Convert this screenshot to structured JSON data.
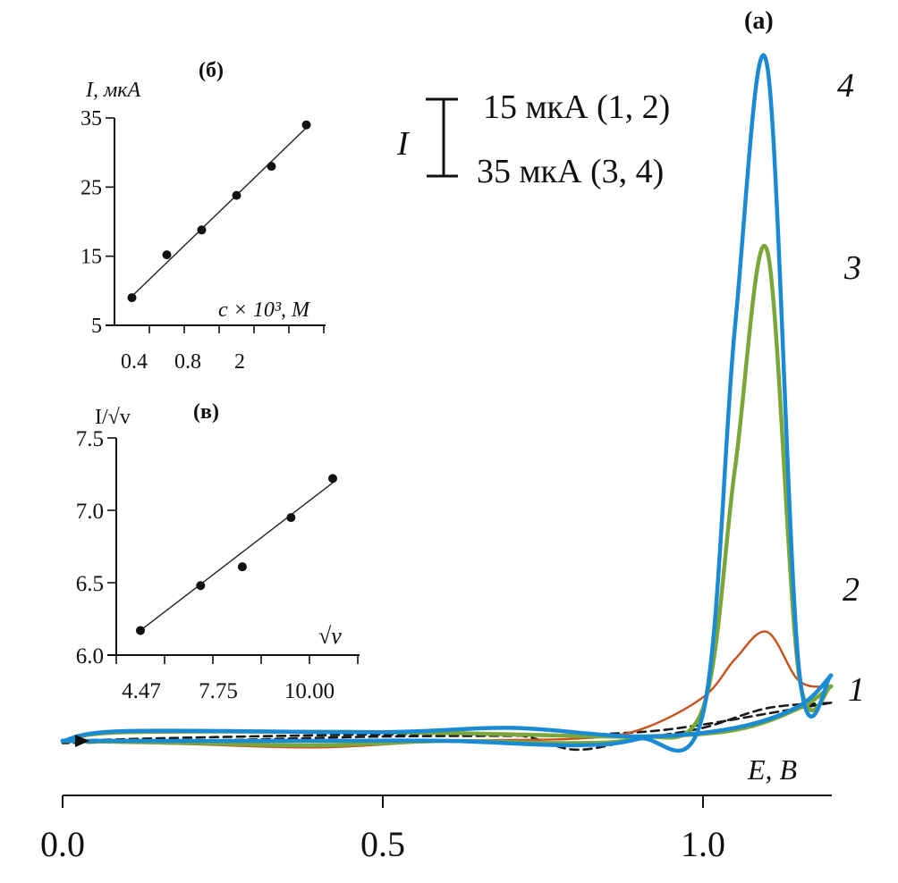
{
  "colors": {
    "curve1": "#1a1a1a",
    "curve2": "#c8501e",
    "curve3": "#7aa63a",
    "curve4": "#1a8ad4",
    "axis": "#111111"
  },
  "chart_data": [
    {
      "id": "a",
      "type": "line",
      "panel_label": "(a)",
      "xlabel": "E, В",
      "ylabel": "I",
      "xlim": [
        0.0,
        1.2
      ],
      "xticks": [
        0.0,
        0.5,
        1.0
      ],
      "xtick_labels": [
        "0.0",
        "0.5",
        "1.0"
      ],
      "scale_bar": {
        "symbol": "I",
        "line1": "15 мкА (1, 2)",
        "line2": "35 мкА (3, 4)"
      },
      "series": [
        {
          "name": "1",
          "label": "1",
          "style": "dashed",
          "forward": [
            [
              0.0,
              0.0
            ],
            [
              0.2,
              0.3
            ],
            [
              0.5,
              0.6
            ],
            [
              0.7,
              0.6
            ],
            [
              0.8,
              -0.8
            ],
            [
              0.9,
              0.2
            ],
            [
              1.0,
              1.2
            ],
            [
              1.1,
              3.0
            ],
            [
              1.2,
              3.5
            ]
          ],
          "reverse": [
            [
              1.2,
              3.5
            ],
            [
              1.1,
              2.5
            ],
            [
              1.0,
              1.5
            ],
            [
              0.9,
              0.8
            ],
            [
              0.75,
              0.5
            ],
            [
              0.5,
              0.4
            ],
            [
              0.2,
              0.0
            ],
            [
              0.0,
              -0.2
            ]
          ]
        },
        {
          "name": "2",
          "label": "2",
          "style": "solid",
          "forward": [
            [
              0.0,
              0.0
            ],
            [
              0.2,
              -0.3
            ],
            [
              0.4,
              -0.6
            ],
            [
              0.6,
              0.0
            ],
            [
              0.8,
              0.2
            ],
            [
              0.9,
              1.0
            ],
            [
              1.0,
              4.0
            ],
            [
              1.05,
              7.5
            ],
            [
              1.1,
              10.0
            ],
            [
              1.15,
              5.5
            ],
            [
              1.2,
              5.0
            ]
          ],
          "reverse": [
            [
              1.2,
              5.0
            ],
            [
              1.15,
              3.0
            ],
            [
              1.05,
              1.0
            ],
            [
              0.9,
              0.4
            ],
            [
              0.7,
              0.6
            ],
            [
              0.5,
              0.8
            ],
            [
              0.1,
              0.8
            ],
            [
              0.0,
              0.0
            ]
          ]
        },
        {
          "name": "3",
          "label": "3",
          "style": "solid",
          "forward": [
            [
              0.0,
              0.0
            ],
            [
              0.2,
              -0.2
            ],
            [
              0.4,
              -0.4
            ],
            [
              0.6,
              0.0
            ],
            [
              0.8,
              -0.2
            ],
            [
              0.9,
              0.3
            ],
            [
              1.0,
              3.0
            ],
            [
              1.05,
              25.0
            ],
            [
              1.1,
              45.0
            ],
            [
              1.15,
              6.0
            ],
            [
              1.2,
              5.0
            ]
          ],
          "reverse": [
            [
              1.2,
              5.0
            ],
            [
              1.15,
              3.0
            ],
            [
              1.05,
              1.0
            ],
            [
              0.9,
              0.4
            ],
            [
              0.7,
              0.6
            ],
            [
              0.5,
              0.8
            ],
            [
              0.1,
              0.8
            ],
            [
              0.0,
              0.0
            ]
          ]
        },
        {
          "name": "4",
          "label": "4",
          "style": "solid",
          "forward": [
            [
              0.0,
              0.0
            ],
            [
              0.2,
              0.0
            ],
            [
              0.4,
              0.0
            ],
            [
              0.6,
              0.0
            ],
            [
              0.8,
              -0.4
            ],
            [
              0.9,
              0.2
            ],
            [
              1.0,
              2.5
            ],
            [
              1.05,
              38.0
            ],
            [
              1.1,
              62.0
            ],
            [
              1.15,
              6.5
            ],
            [
              1.2,
              6.0
            ]
          ],
          "reverse": [
            [
              1.2,
              6.0
            ],
            [
              1.15,
              3.2
            ],
            [
              1.05,
              1.2
            ],
            [
              0.9,
              0.4
            ],
            [
              0.7,
              1.2
            ],
            [
              0.5,
              0.8
            ],
            [
              0.1,
              0.9
            ],
            [
              0.0,
              0.0
            ]
          ]
        }
      ]
    },
    {
      "id": "b",
      "type": "scatter",
      "panel_label": "(б)",
      "ylabel": "I, мкА",
      "xlabel": "c × 10³, М",
      "ylim": [
        5,
        35
      ],
      "yticks": [
        5,
        15,
        25,
        35
      ],
      "xtick_labels": [
        "0.4",
        "0.8",
        "2"
      ],
      "points": [
        {
          "x_index": 0.5,
          "y": 9.0
        },
        {
          "x_index": 1.5,
          "y": 15.2
        },
        {
          "x_index": 2.5,
          "y": 18.8
        },
        {
          "x_index": 3.5,
          "y": 23.8
        },
        {
          "x_index": 4.5,
          "y": 28.0
        },
        {
          "x_index": 5.5,
          "y": 34.0
        }
      ],
      "fit_line": [
        [
          0.5,
          9.2
        ],
        [
          5.5,
          33.6
        ]
      ]
    },
    {
      "id": "v",
      "type": "scatter",
      "panel_label": "(в)",
      "ylabel": "I/√v",
      "xlabel": "√v",
      "ylim": [
        6.0,
        7.5
      ],
      "yticks": [
        "6.0",
        "6.5",
        "7.0",
        "7.5"
      ],
      "xlim": [
        4.47,
        10.0
      ],
      "xticks": [
        4.47,
        7.75,
        10.0
      ],
      "xtick_labels": [
        "4.47",
        "7.75",
        "10.00"
      ],
      "points": [
        {
          "x": 4.47,
          "y": 6.17
        },
        {
          "x": 6.2,
          "y": 6.48
        },
        {
          "x": 7.4,
          "y": 6.61
        },
        {
          "x": 8.8,
          "y": 6.95
        },
        {
          "x": 10.0,
          "y": 7.22
        }
      ],
      "fit_line": [
        [
          4.47,
          6.17
        ],
        [
          10.0,
          7.19
        ]
      ]
    }
  ]
}
